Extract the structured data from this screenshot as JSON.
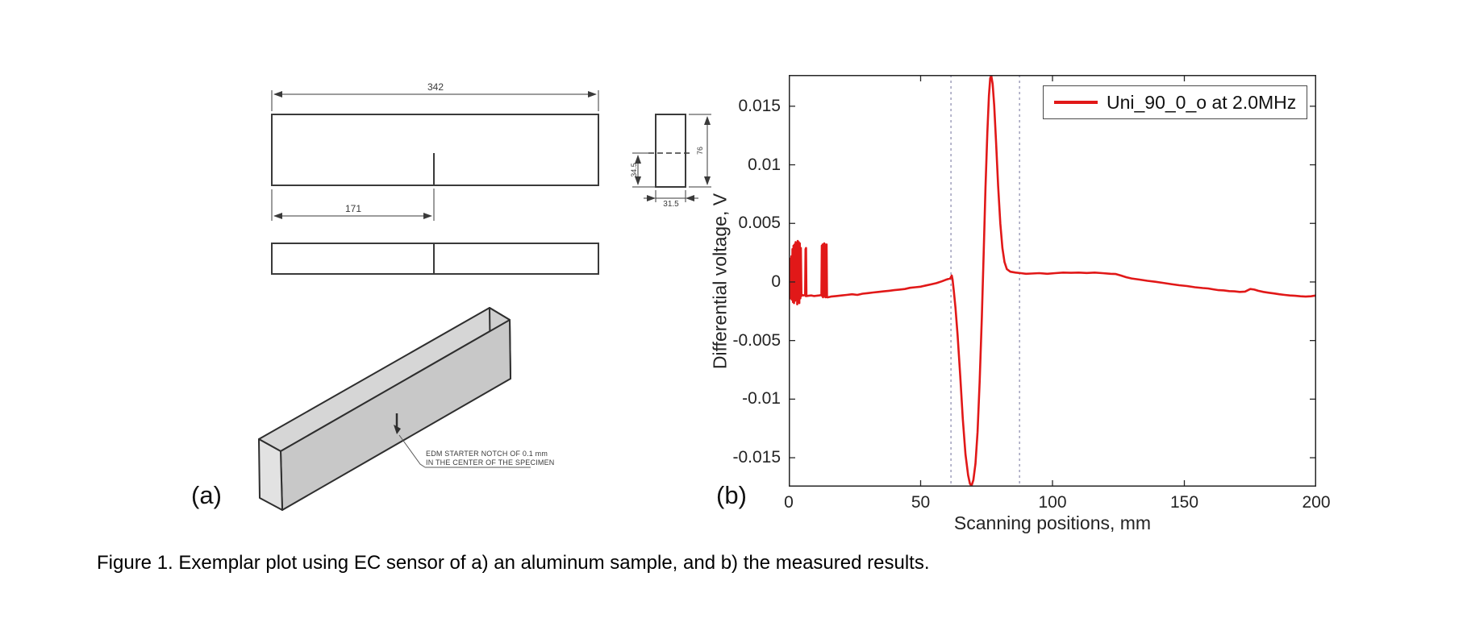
{
  "figure": {
    "panel_a_label": "(a)",
    "panel_b_label": "(b)",
    "caption": "Figure 1. Exemplar plot using EC sensor of a) an aluminum sample, and b) the measured results."
  },
  "drawing": {
    "dim_length_total": "342",
    "dim_length_to_notch": "171",
    "dim_width": "31.5",
    "dim_notch_depth": "34.5",
    "dim_height": "76",
    "note_line1": "EDM STARTER NOTCH OF 0.1 mm",
    "note_line2": "IN THE CENTER OF THE SPECIMEN"
  },
  "colors": {
    "series_red": "#e11818",
    "dashed_vline": "#8888ab",
    "axis": "#262626",
    "drawing_stroke": "#3a3a3a"
  },
  "chart_data": {
    "type": "line",
    "title": "",
    "xlabel": "Scanning positions, mm",
    "ylabel": "Differential voltage, V",
    "xlim": [
      0,
      200
    ],
    "ylim": [
      -0.01747,
      0.01767
    ],
    "x_ticks": [
      0,
      50,
      100,
      150,
      200
    ],
    "y_ticks": [
      0.015,
      0.01,
      0.005,
      0,
      -0.005,
      -0.01,
      -0.015
    ],
    "x_tick_labels": [
      "0",
      "50",
      "100",
      "150",
      "200"
    ],
    "y_tick_labels": [
      "0.015",
      "0.01",
      "0.005",
      "0",
      "-0.005",
      "-0.01",
      "-0.015"
    ],
    "grid": false,
    "legend": {
      "position": "top-right",
      "entries": [
        {
          "label": "Uni_90_0_o at 2.0MHz",
          "color": "#e11818"
        }
      ]
    },
    "annotations": {
      "dashed_vlines_x": [
        61.5,
        87.5
      ],
      "vline_color": "#8888ab"
    },
    "series": [
      {
        "name": "Uni_90_0_o at 2.0MHz",
        "color": "#e11818",
        "points": [
          [
            0,
            0.0002
          ],
          [
            0.2,
            -0.0012
          ],
          [
            0.35,
            0.0018
          ],
          [
            0.5,
            -0.0014
          ],
          [
            0.65,
            0.002
          ],
          [
            0.8,
            -0.0013
          ],
          [
            1,
            0.0022
          ],
          [
            1.2,
            -0.0015
          ],
          [
            1.4,
            0.0028
          ],
          [
            1.6,
            -0.0017
          ],
          [
            1.8,
            0.0031
          ],
          [
            2,
            -0.0018
          ],
          [
            2.2,
            0.0032
          ],
          [
            2.4,
            -0.0016
          ],
          [
            2.6,
            0.0034
          ],
          [
            2.8,
            -0.0015
          ],
          [
            3,
            0.0033
          ],
          [
            3.2,
            -0.0019
          ],
          [
            3.4,
            0.0035
          ],
          [
            3.6,
            -0.0016
          ],
          [
            3.8,
            0.0034
          ],
          [
            4,
            -0.0018
          ],
          [
            4.2,
            0.0033
          ],
          [
            4.4,
            -0.0014
          ],
          [
            4.6,
            0.0029
          ],
          [
            4.8,
            -0.0012
          ],
          [
            5,
            -0.0011
          ],
          [
            5.6,
            -0.00115
          ],
          [
            6.2,
            -0.0011
          ],
          [
            6.35,
            0.0028
          ],
          [
            6.45,
            -0.0012
          ],
          [
            6.55,
            0.0029
          ],
          [
            6.7,
            -0.0012
          ],
          [
            7.5,
            -0.00118
          ],
          [
            8.5,
            -0.00115
          ],
          [
            9.5,
            -0.0012
          ],
          [
            10.5,
            -0.00118
          ],
          [
            11.5,
            -0.00115
          ],
          [
            12.4,
            -0.00112
          ],
          [
            12.55,
            0.0031
          ],
          [
            12.7,
            -0.0012
          ],
          [
            12.85,
            0.0032
          ],
          [
            13,
            -0.0013
          ],
          [
            13.15,
            0.0031
          ],
          [
            13.3,
            -0.0012
          ],
          [
            13.45,
            0.0033
          ],
          [
            13.6,
            -0.0012
          ],
          [
            13.75,
            0.0032
          ],
          [
            13.9,
            -0.0013
          ],
          [
            14.05,
            0.0031
          ],
          [
            14.2,
            -0.0012
          ],
          [
            14.35,
            0.0032
          ],
          [
            14.5,
            -0.0013
          ],
          [
            15,
            -0.0013
          ],
          [
            16,
            -0.00125
          ],
          [
            18,
            -0.0012
          ],
          [
            20,
            -0.00115
          ],
          [
            22,
            -0.0011
          ],
          [
            24,
            -0.00105
          ],
          [
            26,
            -0.0011
          ],
          [
            28,
            -0.001
          ],
          [
            30,
            -0.00095
          ],
          [
            32,
            -0.0009
          ],
          [
            34,
            -0.00085
          ],
          [
            36,
            -0.0008
          ],
          [
            38,
            -0.00075
          ],
          [
            40,
            -0.0007
          ],
          [
            42,
            -0.00065
          ],
          [
            44,
            -0.0006
          ],
          [
            46,
            -0.0005
          ],
          [
            48,
            -0.00045
          ],
          [
            50,
            -0.0004
          ],
          [
            52,
            -0.0003
          ],
          [
            54,
            -0.0002
          ],
          [
            56,
            -0.0001
          ],
          [
            58,
            5e-05
          ],
          [
            59.5,
            0.00018
          ],
          [
            60.5,
            0.00025
          ],
          [
            61.2,
            0.0003
          ],
          [
            61.8,
            0.00055
          ],
          [
            62.1,
            0.0002
          ],
          [
            62.6,
            -0.0008
          ],
          [
            63.2,
            -0.0022
          ],
          [
            64,
            -0.0045
          ],
          [
            65,
            -0.008
          ],
          [
            66,
            -0.0117
          ],
          [
            67,
            -0.0147
          ],
          [
            68,
            -0.0165
          ],
          [
            68.7,
            -0.0172
          ],
          [
            69.3,
            -0.0174
          ],
          [
            70,
            -0.0169
          ],
          [
            70.8,
            -0.0155
          ],
          [
            71.6,
            -0.0128
          ],
          [
            72.4,
            -0.0085
          ],
          [
            73.2,
            -0.003
          ],
          [
            73.9,
            0.0025
          ],
          [
            74.6,
            0.008
          ],
          [
            75.3,
            0.0127
          ],
          [
            75.9,
            0.0159
          ],
          [
            76.4,
            0.0174
          ],
          [
            76.8,
            0.0176
          ],
          [
            77.3,
            0.0169
          ],
          [
            77.9,
            0.0151
          ],
          [
            78.6,
            0.012
          ],
          [
            79.4,
            0.0082
          ],
          [
            80.2,
            0.005
          ],
          [
            81,
            0.0029
          ],
          [
            81.8,
            0.0017
          ],
          [
            82.7,
            0.0011
          ],
          [
            84,
            0.00088
          ],
          [
            86,
            0.0008
          ],
          [
            88,
            0.00075
          ],
          [
            90,
            0.0007
          ],
          [
            92,
            0.00072
          ],
          [
            95,
            0.00075
          ],
          [
            98,
            0.0007
          ],
          [
            101,
            0.00075
          ],
          [
            104,
            0.0008
          ],
          [
            107,
            0.00078
          ],
          [
            110,
            0.0008
          ],
          [
            113,
            0.00077
          ],
          [
            116,
            0.0008
          ],
          [
            119,
            0.00075
          ],
          [
            122,
            0.0007
          ],
          [
            124,
            0.00068
          ],
          [
            126,
            0.00055
          ],
          [
            128,
            0.0004
          ],
          [
            130,
            0.0003
          ],
          [
            133,
            0.0002
          ],
          [
            136,
            0.0001
          ],
          [
            139,
            2e-05
          ],
          [
            142,
            -8e-05
          ],
          [
            145,
            -0.00018
          ],
          [
            148,
            -0.00028
          ],
          [
            151,
            -0.00035
          ],
          [
            154,
            -0.00045
          ],
          [
            157,
            -0.00052
          ],
          [
            159,
            -0.00055
          ],
          [
            161,
            -0.00063
          ],
          [
            163,
            -0.0007
          ],
          [
            165,
            -0.00072
          ],
          [
            167,
            -0.00078
          ],
          [
            169,
            -0.0008
          ],
          [
            171,
            -0.00085
          ],
          [
            173,
            -0.00082
          ],
          [
            175,
            -0.0006
          ],
          [
            176.5,
            -0.00065
          ],
          [
            178,
            -0.00075
          ],
          [
            180,
            -0.00085
          ],
          [
            182,
            -0.00092
          ],
          [
            184,
            -0.00098
          ],
          [
            186,
            -0.00105
          ],
          [
            188,
            -0.0011
          ],
          [
            190,
            -0.00115
          ],
          [
            192,
            -0.00118
          ],
          [
            194,
            -0.00122
          ],
          [
            196,
            -0.00125
          ],
          [
            198,
            -0.00122
          ],
          [
            200,
            -0.00115
          ]
        ]
      }
    ]
  }
}
